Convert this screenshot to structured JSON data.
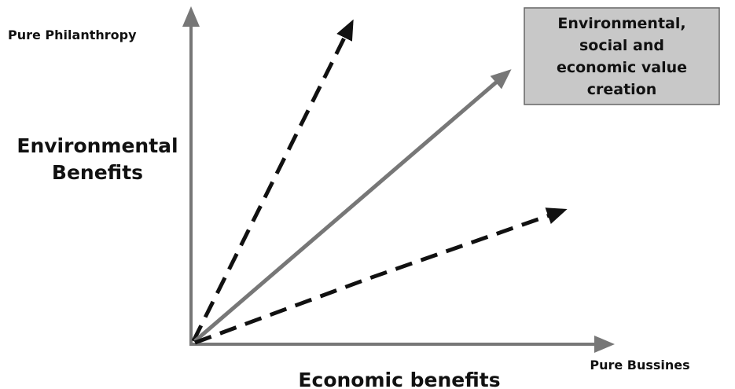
{
  "y_axis": {
    "top_label": "Pure Philanthropy",
    "title_lines": [
      "Environmental",
      "Benefits"
    ]
  },
  "x_axis": {
    "title": "Economic benefits",
    "end_label": "Pure Bussines"
  },
  "box": {
    "lines": [
      "Environmental,",
      "social and",
      "economic value",
      "creation"
    ]
  }
}
